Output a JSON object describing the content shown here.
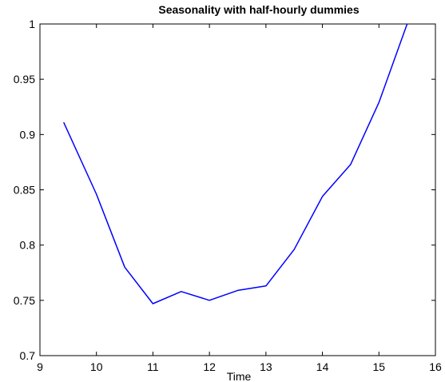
{
  "chart_data": {
    "type": "line",
    "title": "Seasonality with half-hourly dummies",
    "xlabel": "Time",
    "ylabel": "",
    "xlim": [
      9,
      16
    ],
    "ylim": [
      0.7,
      1
    ],
    "xticks": [
      "9",
      "10",
      "11",
      "12",
      "13",
      "14",
      "15",
      "16"
    ],
    "yticks": [
      "0.7",
      "0.75",
      "0.8",
      "0.85",
      "0.9",
      "0.95",
      "1"
    ],
    "grid": false,
    "series": [
      {
        "color": "#0000ff",
        "x": [
          9.42,
          10.0,
          10.5,
          11.0,
          11.5,
          12.0,
          12.5,
          13.0,
          13.5,
          14.0,
          14.5,
          15.0,
          15.5
        ],
        "y": [
          0.911,
          0.846,
          0.78,
          0.747,
          0.758,
          0.75,
          0.759,
          0.763,
          0.796,
          0.844,
          0.873,
          0.929,
          1.0
        ]
      }
    ]
  }
}
